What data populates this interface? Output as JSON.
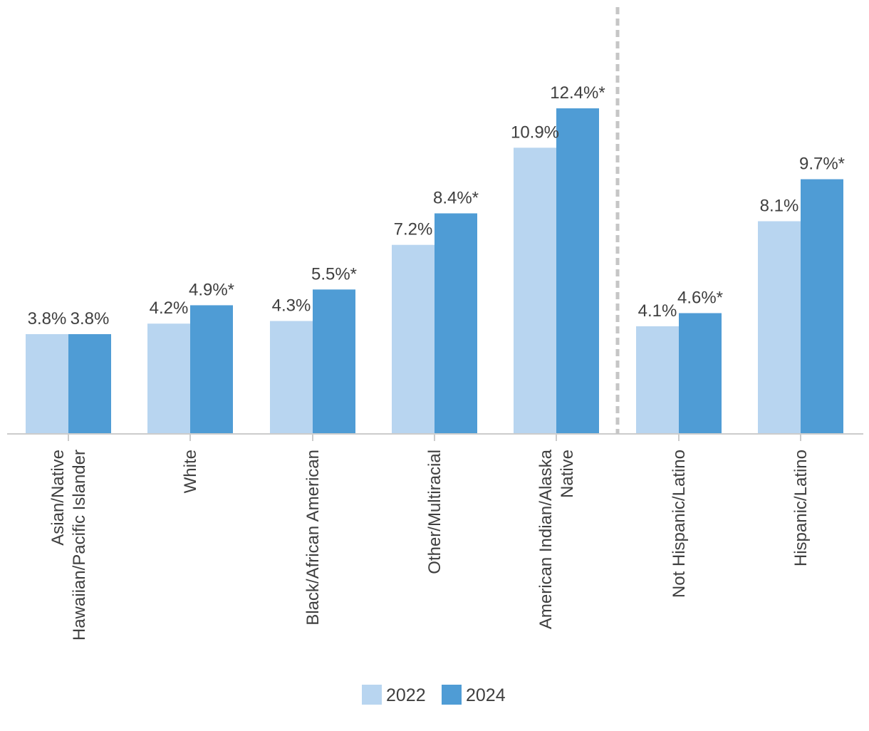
{
  "chart_data": {
    "type": "bar",
    "categories": [
      [
        "Asian/Native",
        "Hawaiian/Pacific Islander"
      ],
      [
        "White"
      ],
      [
        "Black/African American"
      ],
      [
        "Other/Multiracial"
      ],
      [
        "American Indian/Alaska",
        "Native"
      ],
      [
        "Not Hispanic/Latino"
      ],
      [
        "Hispanic/Latino"
      ]
    ],
    "series": [
      {
        "name": "2022",
        "color": "#b8d5f0",
        "values": [
          3.8,
          4.2,
          4.3,
          7.2,
          10.9,
          4.1,
          8.1
        ],
        "labels": [
          "3.8%",
          "4.2%",
          "4.3%",
          "7.2%",
          "10.9%",
          "4.1%",
          "8.1%"
        ]
      },
      {
        "name": "2024",
        "color": "#4f9cd5",
        "values": [
          3.8,
          4.9,
          5.5,
          8.4,
          12.4,
          4.6,
          9.7
        ],
        "labels": [
          "3.8%",
          "4.9%*",
          "5.5%*",
          "8.4%*",
          "12.4%*",
          "4.6%*",
          "9.7%*"
        ]
      }
    ],
    "ylim": [
      0,
      14.6
    ],
    "grid": false,
    "divider_after_category": 4,
    "legend_position": "bottom-center",
    "title": "",
    "xlabel": "",
    "ylabel": ""
  }
}
